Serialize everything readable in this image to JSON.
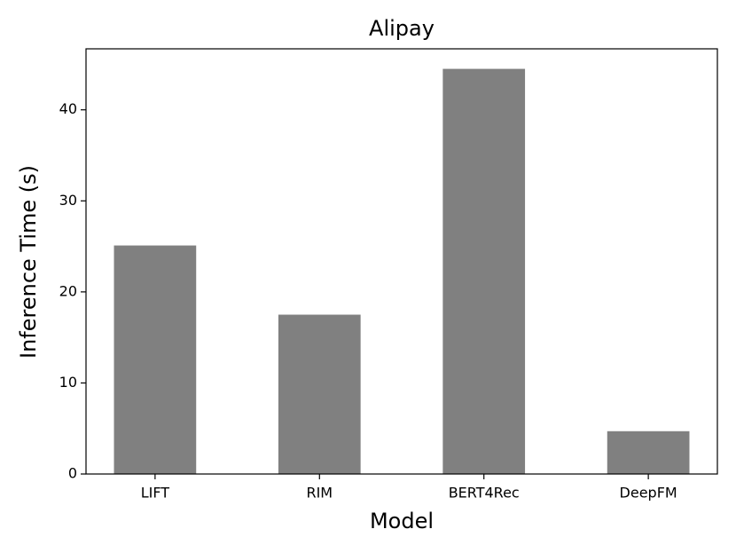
{
  "chart_data": {
    "type": "bar",
    "title": "Alipay",
    "x_label": "Model",
    "y_label": "Inference Time (s)",
    "categories": [
      "LIFT",
      "RIM",
      "BERT4Rec",
      "DeepFM"
    ],
    "values": [
      25.1,
      17.5,
      44.5,
      4.7
    ],
    "color": "#808080",
    "ylim": [
      0,
      46.7
    ],
    "yticks": [
      0,
      10,
      20,
      30,
      40
    ],
    "grid": false
  }
}
